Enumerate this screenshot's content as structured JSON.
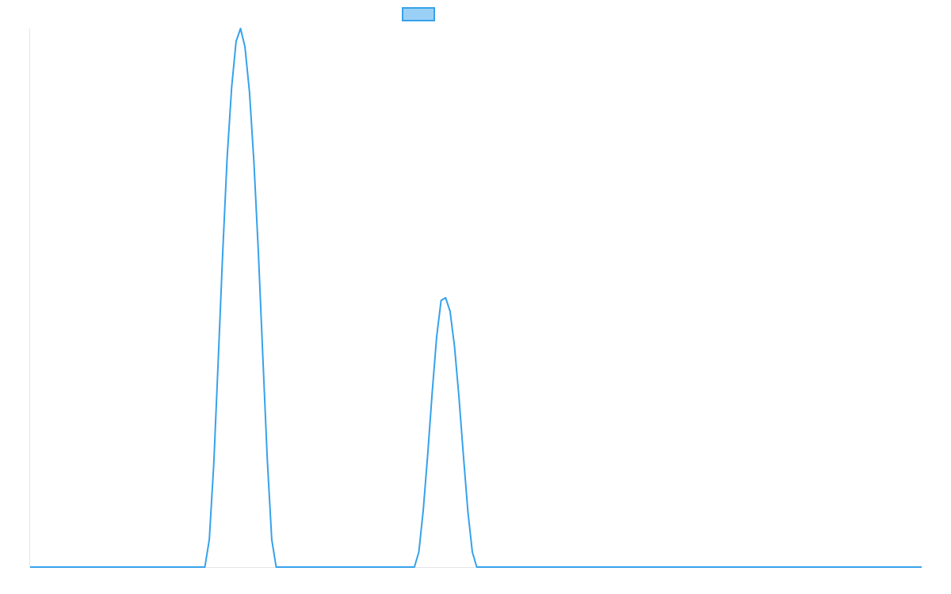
{
  "colors": {
    "series_line": "#36a2eb",
    "series_fill": "#9ad0f5",
    "axis_line": "#e4e4e4",
    "background": "#ffffff"
  },
  "legend": {
    "label": ""
  },
  "chart_data": {
    "type": "line",
    "title": "",
    "xlabel": "",
    "ylabel": "",
    "grid": false,
    "legend_position": "top-center",
    "xlim": [
      0,
      100
    ],
    "ylim": [
      0,
      100
    ],
    "series": [
      {
        "x": [
          0,
          10,
          19.6,
          20.1,
          20.6,
          21.1,
          21.6,
          22.1,
          22.6,
          23.1,
          23.6,
          24.1,
          24.6,
          25.1,
          25.6,
          26.1,
          26.6,
          27.1,
          27.6,
          30,
          40,
          43.1,
          43.6,
          44.1,
          44.6,
          45.1,
          45.6,
          46.1,
          46.6,
          47.1,
          47.6,
          48.1,
          48.6,
          49.1,
          49.6,
          50.1,
          50.6,
          51.1,
          60,
          70,
          80,
          90,
          100
        ],
        "y": [
          0,
          0,
          0,
          5.1,
          19.3,
          38.5,
          58.3,
          76.0,
          89.1,
          97.6,
          100.0,
          96.6,
          88.2,
          75.2,
          58.5,
          39.2,
          19.9,
          5.1,
          0,
          0,
          0,
          0,
          2.8,
          10.6,
          21.1,
          32.5,
          42.8,
          49.5,
          50.0,
          47.5,
          41.0,
          31.6,
          20.6,
          10.3,
          2.8,
          0,
          0,
          0,
          0,
          0,
          0,
          0,
          0
        ]
      }
    ]
  }
}
